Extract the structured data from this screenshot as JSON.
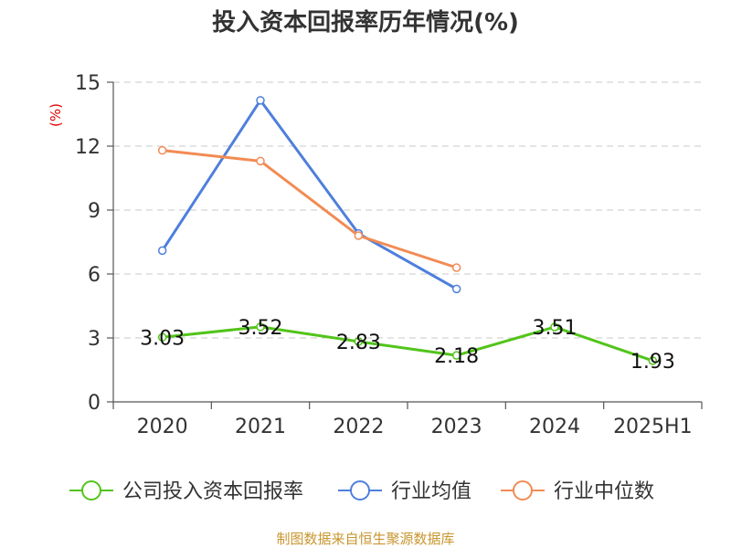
{
  "chart_data": {
    "type": "line",
    "title": "投入资本回报率历年情况(%)",
    "ylabel": "(%)",
    "xlabel": "",
    "categories": [
      "2020",
      "2021",
      "2022",
      "2023",
      "2024",
      "2025H1"
    ],
    "ylim": [
      0,
      15
    ],
    "yticks": [
      0,
      3,
      6,
      9,
      12,
      15
    ],
    "grid": true,
    "legend_position": "bottom",
    "series": [
      {
        "name": "公司投入资本回报率",
        "color": "#52c41a",
        "values": [
          3.03,
          3.52,
          2.83,
          2.18,
          3.51,
          1.93
        ],
        "labels": [
          "3.03",
          "3.52",
          "2.83",
          "2.18",
          "3.51",
          "1.93"
        ]
      },
      {
        "name": "行业均值",
        "color": "#4e7fdc",
        "values": [
          7.1,
          14.15,
          7.9,
          5.3,
          null,
          null
        ]
      },
      {
        "name": "行业中位数",
        "color": "#f28b54",
        "values": [
          11.8,
          11.3,
          7.8,
          6.3,
          null,
          null
        ]
      }
    ],
    "source": "制图数据来自恒生聚源数据库"
  }
}
